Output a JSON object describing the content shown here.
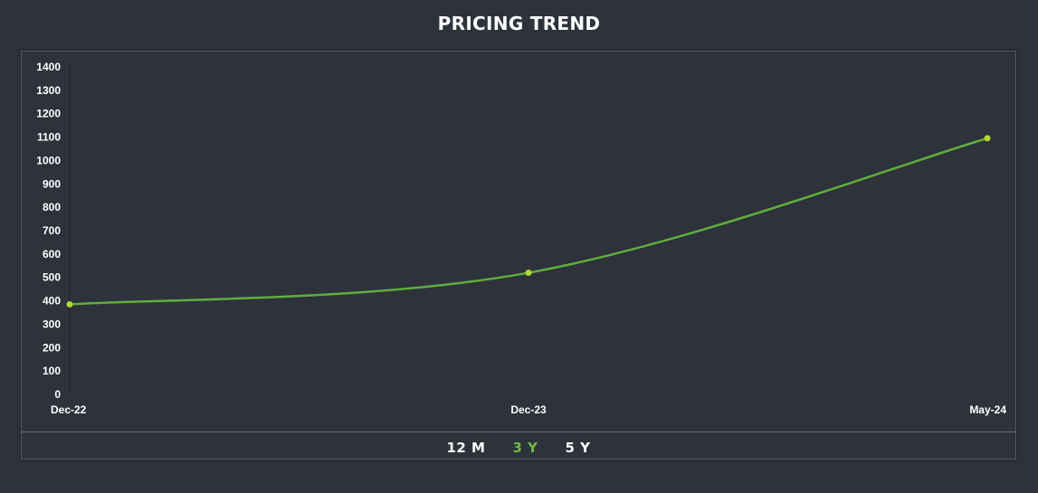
{
  "colors": {
    "background": "#2d323b",
    "line": "#5fae3c",
    "marker": "#b6d733",
    "active_range": "#6fba45"
  },
  "range_selector": {
    "options": [
      {
        "label": "12 M",
        "active": false
      },
      {
        "label": "3 Y",
        "active": true
      },
      {
        "label": "5 Y",
        "active": false
      }
    ]
  },
  "chart_data": {
    "type": "line",
    "title": "PRICING TREND",
    "xlabel": "",
    "ylabel": "",
    "x": [
      "Dec-22",
      "Dec-23",
      "May-24"
    ],
    "series": [
      {
        "values": [
          385,
          520,
          1095
        ]
      }
    ],
    "ylim": [
      0,
      1400
    ],
    "yticks": [
      0,
      100,
      200,
      300,
      400,
      500,
      600,
      700,
      800,
      900,
      1000,
      1100,
      1200,
      1300,
      1400
    ],
    "grid": false,
    "legend": false
  }
}
